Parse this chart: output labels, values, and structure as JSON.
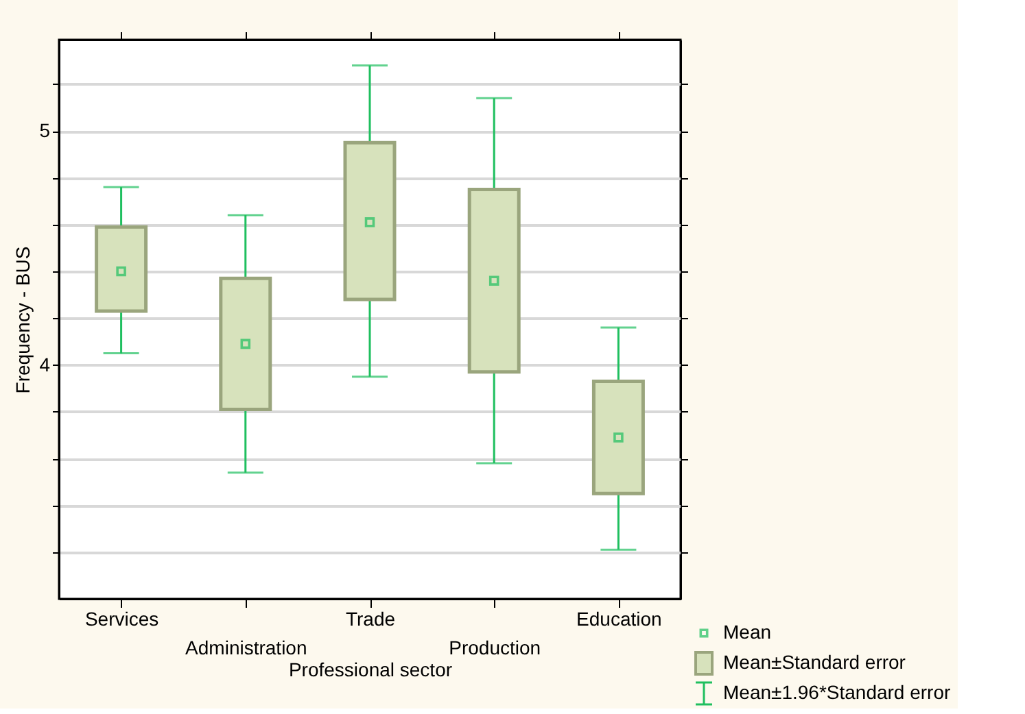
{
  "chart_data": {
    "type": "bar",
    "xlabel": "Professional sector",
    "ylabel": "Frequency - BUS",
    "categories": [
      "Services",
      "Administration",
      "Trade",
      "Production",
      "Education"
    ],
    "ylim": [
      3.0,
      5.39
    ],
    "yticks": [
      {
        "value": 3.2,
        "label": null
      },
      {
        "value": 3.4,
        "label": null
      },
      {
        "value": 3.6,
        "label": null
      },
      {
        "value": 3.8,
        "label": null
      },
      4,
      {
        "value": 4.2,
        "label": null
      },
      {
        "value": 4.4,
        "label": null
      },
      {
        "value": 4.6,
        "label": null
      },
      {
        "value": 4.8,
        "label": null
      },
      5,
      {
        "value": 5.2,
        "label": null
      }
    ],
    "grid": "y",
    "legend": "bottom right",
    "series": [
      {
        "name": "Mean",
        "type": "scatter",
        "marker": "square",
        "color": "#1fbf5f",
        "values": [
          4.4,
          4.09,
          4.61,
          4.36,
          3.69
        ],
        "errors": [
          [
            4.05,
            4.76
          ],
          [
            3.54,
            4.64
          ],
          [
            3.95,
            5.28
          ],
          [
            3.58,
            5.14
          ],
          [
            3.21,
            4.16
          ]
        ]
      },
      {
        "name": "Mean±Standard error",
        "color": "#d7e2bc",
        "base": [
          4.23,
          3.81,
          4.28,
          3.97,
          3.45
        ],
        "values": [
          0.36,
          0.56,
          0.67,
          0.78,
          0.48
        ]
      }
    ],
    "annotations": [
      "Mean±1.96*Standard error"
    ]
  }
}
